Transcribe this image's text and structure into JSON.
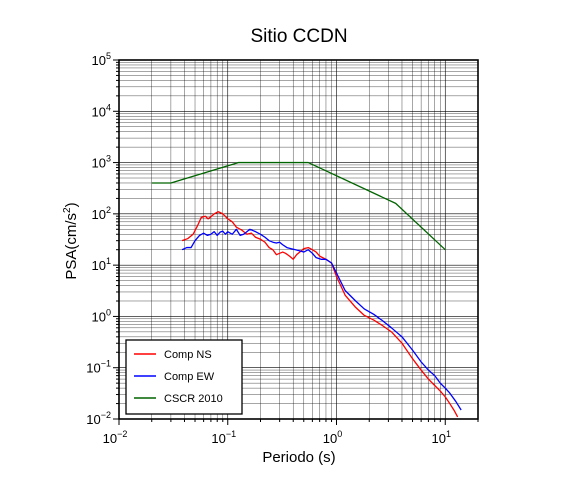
{
  "chart_data": {
    "type": "line",
    "title": "Sitio CCDN",
    "xlabel": "Periodo (s)",
    "ylabel_main": "PSA(cm/s",
    "ylabel_sup": "2",
    "ylabel_close": ")",
    "x_scale": "log",
    "y_scale": "log",
    "xlim": [
      0.01,
      20
    ],
    "ylim": [
      0.01,
      100000
    ],
    "x_ticks": [
      {
        "value": 0.01,
        "base": "10",
        "exp": "−2"
      },
      {
        "value": 0.1,
        "base": "10",
        "exp": "−1"
      },
      {
        "value": 1,
        "base": "10",
        "exp": "0"
      },
      {
        "value": 10,
        "base": "10",
        "exp": "1"
      }
    ],
    "y_ticks": [
      {
        "value": 0.01,
        "base": "10",
        "exp": "−2"
      },
      {
        "value": 0.1,
        "base": "10",
        "exp": "−1"
      },
      {
        "value": 1,
        "base": "10",
        "exp": "0"
      },
      {
        "value": 10,
        "base": "10",
        "exp": "1"
      },
      {
        "value": 100,
        "base": "10",
        "exp": "2"
      },
      {
        "value": 1000,
        "base": "10",
        "exp": "3"
      },
      {
        "value": 10000,
        "base": "10",
        "exp": "4"
      },
      {
        "value": 100000,
        "base": "10",
        "exp": "5"
      }
    ],
    "grid": true,
    "legend_position": "bottom-left",
    "series": [
      {
        "name": "Comp NS",
        "color": "#ff0000",
        "points": [
          [
            0.038,
            30
          ],
          [
            0.043,
            33
          ],
          [
            0.048,
            40
          ],
          [
            0.053,
            60
          ],
          [
            0.057,
            85
          ],
          [
            0.062,
            90
          ],
          [
            0.066,
            80
          ],
          [
            0.07,
            88
          ],
          [
            0.075,
            100
          ],
          [
            0.082,
            110
          ],
          [
            0.09,
            100
          ],
          [
            0.1,
            80
          ],
          [
            0.11,
            70
          ],
          [
            0.12,
            55
          ],
          [
            0.135,
            48
          ],
          [
            0.15,
            40
          ],
          [
            0.165,
            42
          ],
          [
            0.18,
            35
          ],
          [
            0.2,
            32
          ],
          [
            0.22,
            28
          ],
          [
            0.24,
            22
          ],
          [
            0.26,
            20
          ],
          [
            0.28,
            16
          ],
          [
            0.3,
            17
          ],
          [
            0.32,
            18
          ],
          [
            0.34,
            17
          ],
          [
            0.37,
            15
          ],
          [
            0.4,
            13
          ],
          [
            0.43,
            16
          ],
          [
            0.46,
            18
          ],
          [
            0.5,
            21
          ],
          [
            0.55,
            22
          ],
          [
            0.6,
            20
          ],
          [
            0.65,
            18
          ],
          [
            0.7,
            15
          ],
          [
            0.8,
            13
          ],
          [
            0.9,
            11
          ],
          [
            1.0,
            6
          ],
          [
            1.2,
            2.6
          ],
          [
            1.5,
            1.5
          ],
          [
            1.8,
            1.05
          ],
          [
            2.2,
            0.85
          ],
          [
            2.6,
            0.68
          ],
          [
            3.2,
            0.5
          ],
          [
            4.0,
            0.3
          ],
          [
            5.0,
            0.15
          ],
          [
            6.0,
            0.09
          ],
          [
            7.0,
            0.06
          ],
          [
            8.0,
            0.045
          ],
          [
            9.0,
            0.035
          ],
          [
            10.0,
            0.027
          ],
          [
            11.0,
            0.02
          ],
          [
            12.0,
            0.015
          ],
          [
            13.0,
            0.011
          ]
        ]
      },
      {
        "name": "Comp EW",
        "color": "#0000ff",
        "points": [
          [
            0.038,
            20
          ],
          [
            0.042,
            22
          ],
          [
            0.046,
            22
          ],
          [
            0.05,
            30
          ],
          [
            0.055,
            38
          ],
          [
            0.06,
            42
          ],
          [
            0.065,
            38
          ],
          [
            0.07,
            40
          ],
          [
            0.075,
            45
          ],
          [
            0.08,
            38
          ],
          [
            0.085,
            44
          ],
          [
            0.09,
            46
          ],
          [
            0.095,
            40
          ],
          [
            0.1,
            45
          ],
          [
            0.11,
            40
          ],
          [
            0.12,
            50
          ],
          [
            0.13,
            38
          ],
          [
            0.14,
            40
          ],
          [
            0.16,
            50
          ],
          [
            0.18,
            45
          ],
          [
            0.2,
            40
          ],
          [
            0.22,
            35
          ],
          [
            0.24,
            30
          ],
          [
            0.26,
            28
          ],
          [
            0.28,
            27
          ],
          [
            0.3,
            28
          ],
          [
            0.32,
            25
          ],
          [
            0.35,
            22
          ],
          [
            0.38,
            21
          ],
          [
            0.42,
            20
          ],
          [
            0.46,
            19
          ],
          [
            0.5,
            18
          ],
          [
            0.55,
            20
          ],
          [
            0.6,
            17
          ],
          [
            0.65,
            14
          ],
          [
            0.72,
            13
          ],
          [
            0.8,
            13
          ],
          [
            0.9,
            11
          ],
          [
            1.0,
            7
          ],
          [
            1.2,
            3.2
          ],
          [
            1.5,
            2.0
          ],
          [
            1.8,
            1.4
          ],
          [
            2.2,
            1.1
          ],
          [
            2.6,
            0.85
          ],
          [
            3.2,
            0.6
          ],
          [
            4.0,
            0.4
          ],
          [
            5.0,
            0.22
          ],
          [
            6.0,
            0.13
          ],
          [
            7.0,
            0.09
          ],
          [
            8.0,
            0.07
          ],
          [
            9.0,
            0.05
          ],
          [
            10.0,
            0.04
          ],
          [
            11.0,
            0.032
          ],
          [
            12.5,
            0.022
          ],
          [
            14.0,
            0.015
          ]
        ]
      },
      {
        "name": "CSCR 2010",
        "color": "#006400",
        "points": [
          [
            0.02,
            400
          ],
          [
            0.03,
            400
          ],
          [
            0.125,
            1000
          ],
          [
            0.55,
            1000
          ],
          [
            3.5,
            160
          ],
          [
            10.0,
            20
          ]
        ]
      }
    ]
  }
}
